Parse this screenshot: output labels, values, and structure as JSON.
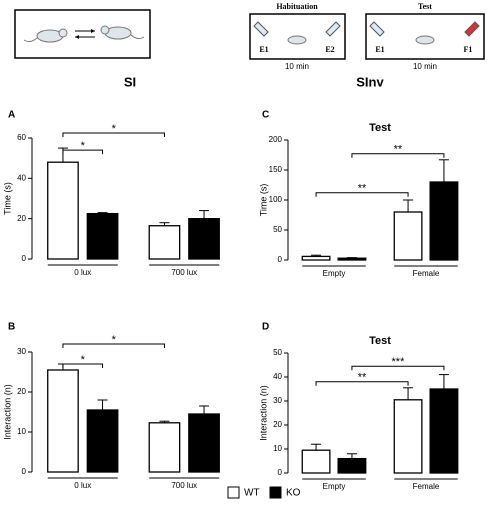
{
  "figure": {
    "left_heading": "SI",
    "right_heading": "SInv",
    "habituation": {
      "title": "Habituation",
      "left": "E1",
      "right": "E2",
      "duration": "10 min"
    },
    "test": {
      "title": "Test",
      "left": "E1",
      "right": "F1",
      "duration": "10 min"
    }
  },
  "chart_data": [
    {
      "type": "bar",
      "panel": "A",
      "ylabel": "Time (s)",
      "categories": [
        "0 lux",
        "700 lux"
      ],
      "series": [
        {
          "name": "WT",
          "color": "#ffffff",
          "values": [
            48,
            16.5
          ],
          "errors": [
            7,
            1.5
          ]
        },
        {
          "name": "KO",
          "color": "#000000",
          "values": [
            22.5,
            20
          ],
          "errors": [
            0.5,
            4
          ]
        }
      ],
      "ylim": [
        0,
        60
      ],
      "yticks": [
        0,
        20,
        40,
        60
      ],
      "brackets": [
        {
          "label": "*",
          "from": [
            0,
            0
          ],
          "to": [
            1,
            0
          ],
          "y": 54
        },
        {
          "label": "*",
          "from": [
            0,
            0
          ],
          "to": [
            0,
            1
          ],
          "y": 62.5
        }
      ]
    },
    {
      "type": "bar",
      "panel": "B",
      "ylabel": "Interaction (n)",
      "categories": [
        "0 lux",
        "700 lux"
      ],
      "series": [
        {
          "color": "#ffffff",
          "values": [
            25.5,
            12.3
          ],
          "errors": [
            1.5,
            0.4
          ]
        },
        {
          "color": "#000000",
          "values": [
            15.5,
            14.5
          ],
          "errors": [
            2.5,
            2
          ]
        }
      ],
      "ylim": [
        0,
        30
      ],
      "yticks": [
        0,
        10,
        20,
        30
      ],
      "brackets": [
        {
          "label": "*",
          "from": [
            0,
            0
          ],
          "to": [
            1,
            0
          ],
          "y": 27
        },
        {
          "label": "*",
          "from": [
            0,
            0
          ],
          "to": [
            0,
            1
          ],
          "y": 32
        }
      ]
    },
    {
      "type": "bar",
      "panel": "C",
      "title": "Test",
      "ylabel": "Time (s)",
      "categories": [
        "Empty",
        "Female"
      ],
      "series": [
        {
          "color": "#ffffff",
          "values": [
            6,
            80
          ],
          "errors": [
            2,
            20
          ]
        },
        {
          "color": "#000000",
          "values": [
            3,
            130
          ],
          "errors": [
            1,
            37
          ]
        }
      ],
      "ylim": [
        0,
        200
      ],
      "yticks": [
        0,
        50,
        100,
        150,
        200
      ],
      "brackets": [
        {
          "label": "**",
          "from": [
            0,
            0
          ],
          "to": [
            0,
            1
          ],
          "y": 112
        },
        {
          "label": "**",
          "from": [
            1,
            0
          ],
          "to": [
            1,
            1
          ],
          "y": 177
        }
      ]
    },
    {
      "type": "bar",
      "panel": "D",
      "title": "Test",
      "ylabel": "Interaction (n)",
      "categories": [
        "Empty",
        "Female"
      ],
      "series": [
        {
          "color": "#ffffff",
          "values": [
            9.5,
            30.5
          ],
          "errors": [
            2.5,
            5
          ]
        },
        {
          "color": "#000000",
          "values": [
            6,
            35
          ],
          "errors": [
            2,
            6
          ]
        }
      ],
      "ylim": [
        0,
        50
      ],
      "yticks": [
        0,
        10,
        20,
        30,
        40,
        50
      ],
      "brackets": [
        {
          "label": "**",
          "from": [
            0,
            0
          ],
          "to": [
            0,
            1
          ],
          "y": 38
        },
        {
          "label": "***",
          "from": [
            1,
            0
          ],
          "to": [
            1,
            1
          ],
          "y": 44.5
        }
      ]
    }
  ]
}
